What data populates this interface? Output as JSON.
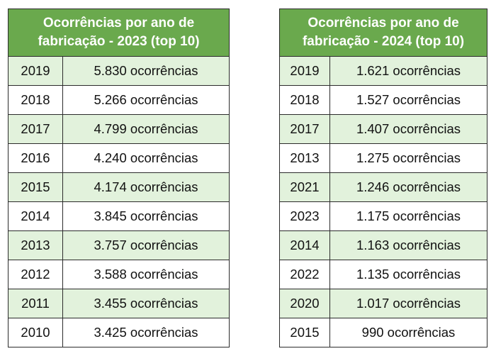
{
  "table_2023": {
    "header": "Ocorrências por ano de fabricação - 2023 (top 10)",
    "rows": [
      {
        "year": "2019",
        "count": "5.830 ocorrências"
      },
      {
        "year": "2018",
        "count": "5.266 ocorrências"
      },
      {
        "year": "2017",
        "count": "4.799 ocorrências"
      },
      {
        "year": "2016",
        "count": "4.240 ocorrências"
      },
      {
        "year": "2015",
        "count": "4.174 ocorrências"
      },
      {
        "year": "2014",
        "count": "3.845 ocorrências"
      },
      {
        "year": "2013",
        "count": "3.757 ocorrências"
      },
      {
        "year": "2012",
        "count": "3.588 ocorrências"
      },
      {
        "year": "2011",
        "count": "3.455 ocorrências"
      },
      {
        "year": "2010",
        "count": "3.425 ocorrências"
      }
    ]
  },
  "table_2024": {
    "header": "Ocorrências por ano de fabricação - 2024 (top 10)",
    "rows": [
      {
        "year": "2019",
        "count": "1.621 ocorrências"
      },
      {
        "year": "2018",
        "count": "1.527 ocorrências"
      },
      {
        "year": "2017",
        "count": "1.407 ocorrências"
      },
      {
        "year": "2013",
        "count": "1.275 ocorrências"
      },
      {
        "year": "2021",
        "count": "1.246 ocorrências"
      },
      {
        "year": "2023",
        "count": "1.175 ocorrências"
      },
      {
        "year": "2014",
        "count": "1.163 ocorrências"
      },
      {
        "year": "2022",
        "count": "1.135 ocorrências"
      },
      {
        "year": "2020",
        "count": "1.017 ocorrências"
      },
      {
        "year": "2015",
        "count": "990 ocorrências"
      }
    ]
  },
  "colors": {
    "header_bg": "#6aa94d",
    "header_text": "#ffffff",
    "alt_row_bg": "#e2f2dc",
    "border": "#2b2b2b"
  }
}
